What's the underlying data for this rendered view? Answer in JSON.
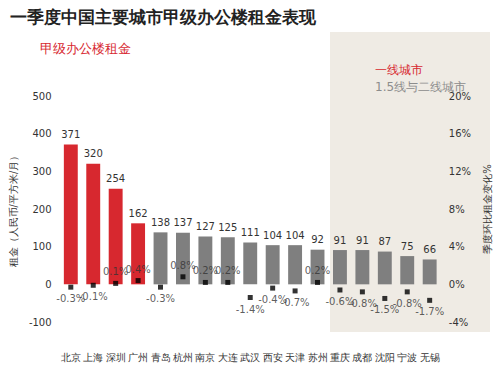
{
  "chart_data": {
    "type": "bar",
    "title": "一季度中国主要城市甲级办公楼租金表现",
    "ylabel": "租金（人民币/平方米/月）",
    "y2label": "季度环比租金变化%",
    "categories": [
      "北京",
      "上海",
      "深圳",
      "广州",
      "青岛",
      "杭州",
      "南京",
      "大连",
      "武汉",
      "西安",
      "天津",
      "苏州",
      "重庆",
      "成都",
      "沈阳",
      "宁波",
      "无锡"
    ],
    "series": [
      {
        "name": "甲级办公楼租金",
        "type": "bar",
        "color": "#d7282f",
        "colors": [
          "#d7282f",
          "#d7282f",
          "#d7282f",
          "#d7282f",
          "#7f7f7f",
          "#7f7f7f",
          "#7f7f7f",
          "#7f7f7f",
          "#7f7f7f",
          "#7f7f7f",
          "#7f7f7f",
          "#7f7f7f",
          "#7f7f7f",
          "#7f7f7f",
          "#7f7f7f",
          "#7f7f7f",
          "#7f7f7f"
        ],
        "values": [
          371,
          320,
          254,
          162,
          138,
          137,
          127,
          125,
          111,
          104,
          104,
          92,
          91,
          91,
          87,
          75,
          66
        ],
        "data_labels": true
      },
      {
        "name": "季度环比租金变化%",
        "type": "scatter",
        "axis": "y2",
        "marker": "square",
        "color": "#000000",
        "values": [
          -0.3,
          -0.1,
          0.1,
          0.4,
          -0.3,
          0.8,
          0.2,
          0.2,
          -1.4,
          -0.4,
          -0.7,
          0.2,
          -0.6,
          -0.8,
          -1.5,
          -0.8,
          -1.7
        ],
        "value_labels": [
          "-0.3%",
          "-0.1%",
          "0.1%",
          "0.4%",
          "-0.3%",
          "0.8%",
          "0.2%",
          "0.2%",
          "-1.4%",
          "-0.4%",
          "-0.7%",
          "0.2%",
          "-0.6%",
          "-0.8%",
          "-1.5%",
          "-0.8%",
          "-1.7%"
        ],
        "data_labels": true
      }
    ],
    "annotations": [
      {
        "text": "一线城市",
        "color": "#d7282f"
      },
      {
        "text": "1.5线与二线城市",
        "color": "#8c8c8c"
      }
    ],
    "ylim": [
      -100,
      500
    ],
    "yticks": [
      -100,
      0,
      100,
      200,
      300,
      400,
      500
    ],
    "y2lim": [
      -4,
      20
    ],
    "y2ticks": [
      {
        "value": -4,
        "label": "-4%"
      },
      {
        "value": 0,
        "label": "0%"
      },
      {
        "value": 4,
        "label": "4%"
      },
      {
        "value": 8,
        "label": "8%"
      },
      {
        "value": 12,
        "label": "12%"
      },
      {
        "value": 16,
        "label": "16%"
      },
      {
        "value": 20,
        "label": "20%"
      }
    ],
    "grid": false
  }
}
